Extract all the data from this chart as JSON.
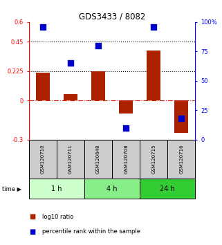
{
  "title": "GDS3433 / 8082",
  "samples": [
    "GSM120710",
    "GSM120711",
    "GSM120648",
    "GSM120708",
    "GSM120715",
    "GSM120716"
  ],
  "log10_ratio": [
    0.21,
    0.05,
    0.225,
    -0.1,
    0.38,
    -0.25
  ],
  "percentile_rank": [
    96,
    65,
    80,
    10,
    96,
    18
  ],
  "time_groups": [
    {
      "label": "1 h",
      "color": "#ccffcc"
    },
    {
      "label": "4 h",
      "color": "#88ee88"
    },
    {
      "label": "24 h",
      "color": "#33cc33"
    }
  ],
  "bar_color": "#aa2200",
  "dot_color": "#0000cc",
  "ylim_left": [
    -0.3,
    0.6
  ],
  "ylim_right": [
    0,
    100
  ],
  "yticks_left": [
    -0.3,
    0.0,
    0.225,
    0.45,
    0.6
  ],
  "ytick_labels_left": [
    "-0.3",
    "0",
    "0.225",
    "0.45",
    "0.6"
  ],
  "yticks_right": [
    0,
    25,
    50,
    75,
    100
  ],
  "ytick_labels_right": [
    "0",
    "25",
    "50",
    "75",
    "100%"
  ],
  "hlines_dotted": [
    0.45,
    0.225
  ],
  "hline_dashed_color": "#cc2200",
  "bar_width": 0.5,
  "dot_size": 40,
  "legend_bar_label": "log10 ratio",
  "legend_dot_label": "percentile rank within the sample",
  "gray_box_color": "#cccccc"
}
